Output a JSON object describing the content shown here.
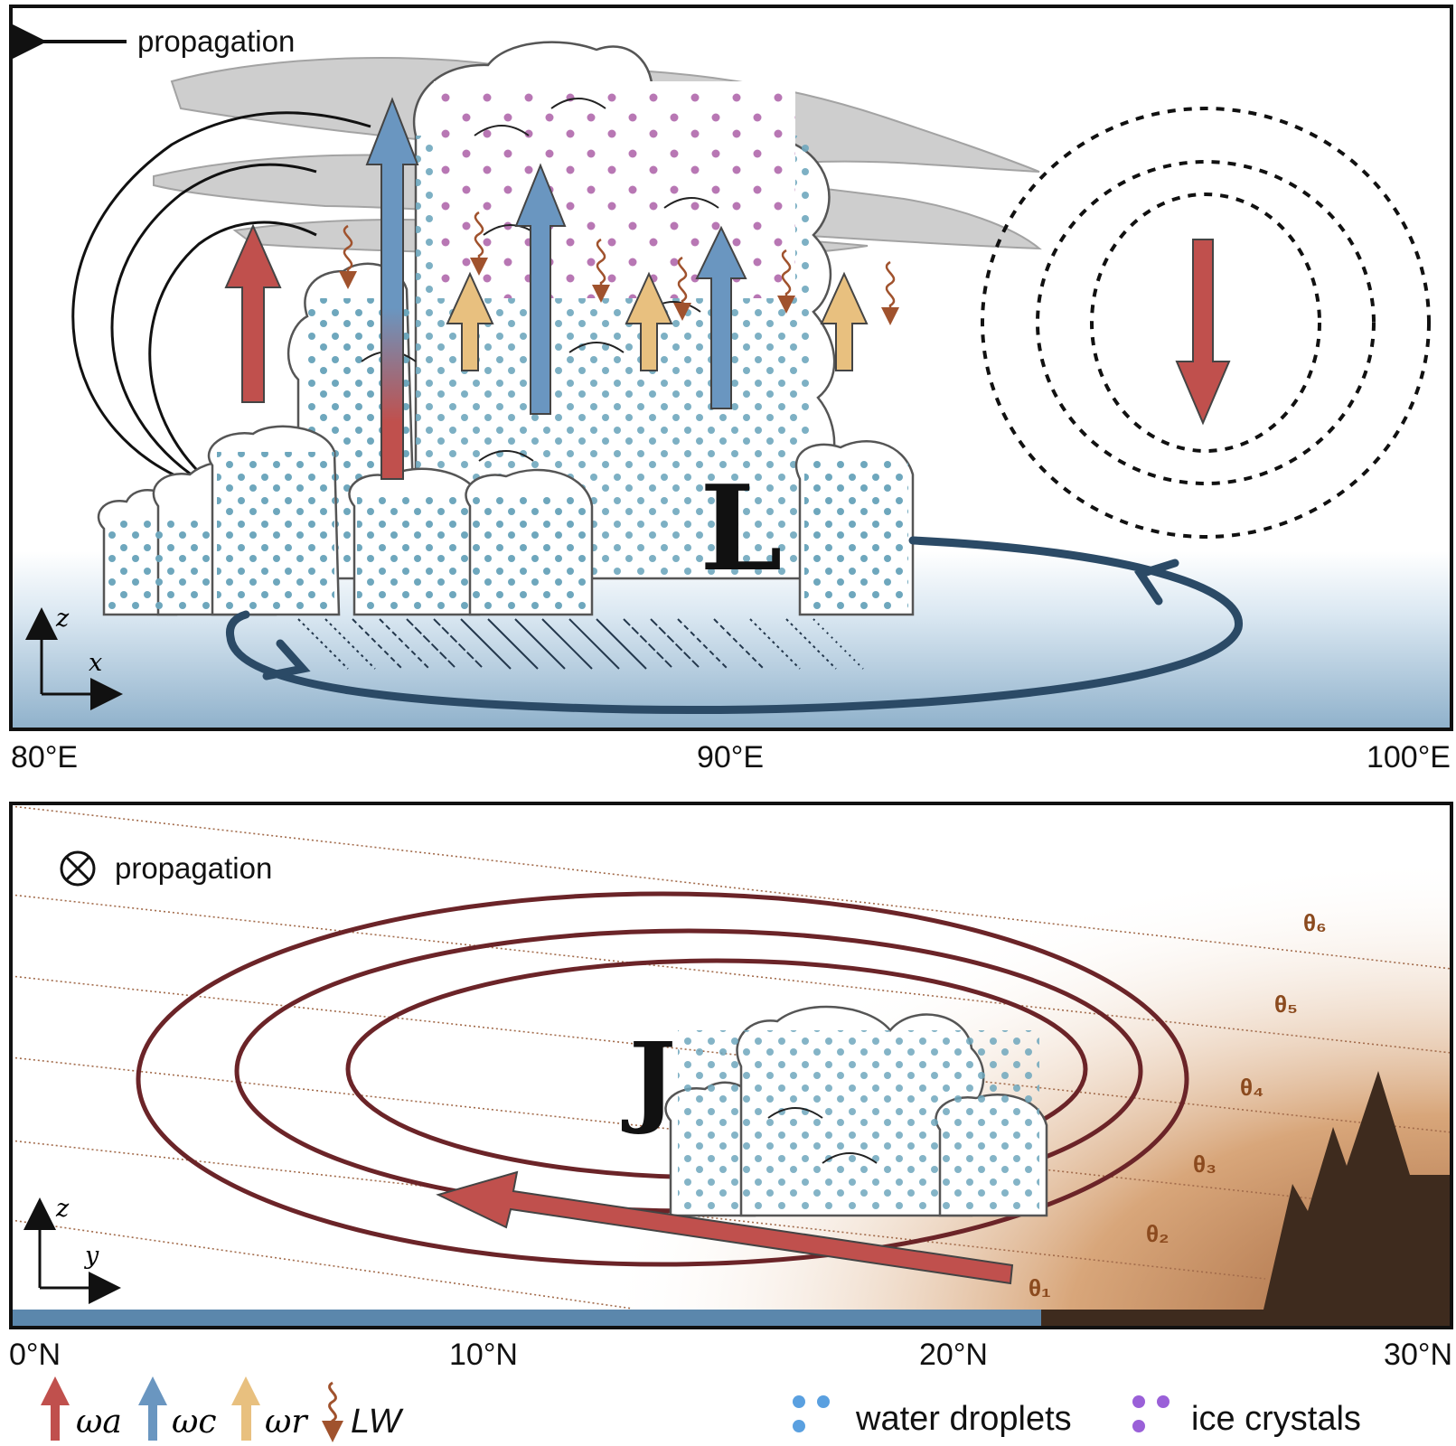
{
  "top_panel": {
    "propagation_label": "propagation",
    "low_label": "L",
    "axis_z": "z",
    "axis_x": "x",
    "x_ticks": [
      "80°E",
      "90°E",
      "100°E"
    ]
  },
  "bottom_panel": {
    "propagation_label": "propagation",
    "jet_label": "J",
    "axis_z": "z",
    "axis_y": "y",
    "x_ticks": [
      "0°N",
      "10°N",
      "20°N",
      "30°N"
    ],
    "isentropes": [
      "θ₁",
      "θ₂",
      "θ₃",
      "θ₄",
      "θ₅",
      "θ₆"
    ]
  },
  "legend": {
    "omega_a": "ωa",
    "omega_c": "ωc",
    "omega_r": "ωr",
    "lw": "LW",
    "water_droplets": "water droplets",
    "ice_crystals": "ice crystals"
  },
  "colors": {
    "omega_a": "#c0504d",
    "omega_c": "#6a96c0",
    "omega_r": "#e8c07f",
    "lw": "#a0522d",
    "water_droplet": "#6ea7bd",
    "ice_crystal": "#b877b4",
    "circulation": "#2b4a66",
    "jet_contour": "#6b2428",
    "terrain": "#3e2b1e"
  }
}
